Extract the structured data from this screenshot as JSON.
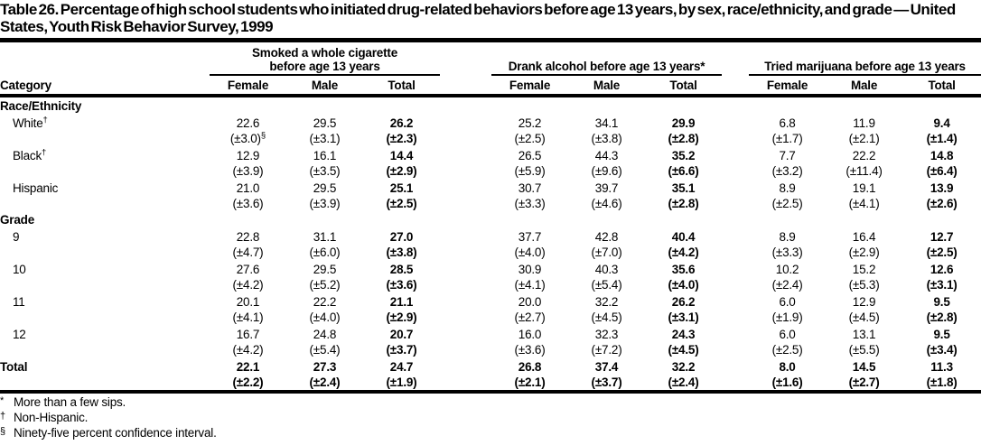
{
  "title": "Table 26. Percentage of high school students who initiated drug-related behaviors before age 13 years, by sex, race/ethnicity, and grade — United States, Youth Risk Behavior Survey, 1999",
  "header": {
    "category": "Category",
    "groups": [
      {
        "name": "cigarette",
        "lines": [
          "Smoked a whole cigarette",
          "before age 13 years"
        ],
        "columns": [
          "Female",
          "Male",
          "Total"
        ]
      },
      {
        "name": "alcohol",
        "lines": [
          "Drank alcohol before age 13 years*"
        ],
        "columns": [
          "Female",
          "Male",
          "Total"
        ]
      },
      {
        "name": "marijuana",
        "lines": [
          "Tried marijuana before age 13 years"
        ],
        "columns": [
          "Female",
          "Male",
          "Total"
        ]
      }
    ]
  },
  "sections": [
    {
      "header": "Race/Ethnicity",
      "rows": [
        {
          "label": "White",
          "label_sup": "†",
          "indent": true,
          "total_row": false,
          "values": [
            "22.6",
            "29.5",
            "26.2",
            "25.2",
            "34.1",
            "29.9",
            "6.8",
            "11.9",
            "9.4"
          ],
          "cis": [
            "(±3.0)",
            "(±3.1)",
            "(±2.3)",
            "(±2.5)",
            "(±3.8)",
            "(±2.8)",
            "(±1.7)",
            "(±2.1)",
            "(±1.4)"
          ],
          "ci_sups": [
            "§",
            "",
            "",
            "",
            "",
            "",
            "",
            "",
            ""
          ]
        },
        {
          "label": "Black",
          "label_sup": "†",
          "indent": true,
          "total_row": false,
          "values": [
            "12.9",
            "16.1",
            "14.4",
            "26.5",
            "44.3",
            "35.2",
            "7.7",
            "22.2",
            "14.8"
          ],
          "cis": [
            "(±3.9)",
            "(±3.5)",
            "(±2.9)",
            "(±5.9)",
            "(±9.6)",
            "(±6.6)",
            "(±3.2)",
            "(±11.4)",
            "(±6.4)"
          ],
          "ci_sups": [
            "",
            "",
            "",
            "",
            "",
            "",
            "",
            "",
            ""
          ]
        },
        {
          "label": "Hispanic",
          "label_sup": "",
          "indent": true,
          "total_row": false,
          "values": [
            "21.0",
            "29.5",
            "25.1",
            "30.7",
            "39.7",
            "35.1",
            "8.9",
            "19.1",
            "13.9"
          ],
          "cis": [
            "(±3.6)",
            "(±3.9)",
            "(±2.5)",
            "(±3.3)",
            "(±4.6)",
            "(±2.8)",
            "(±2.5)",
            "(±4.1)",
            "(±2.6)"
          ],
          "ci_sups": [
            "",
            "",
            "",
            "",
            "",
            "",
            "",
            "",
            ""
          ]
        }
      ]
    },
    {
      "header": "Grade",
      "rows": [
        {
          "label": "9",
          "label_sup": "",
          "indent": true,
          "total_row": false,
          "values": [
            "22.8",
            "31.1",
            "27.0",
            "37.7",
            "42.8",
            "40.4",
            "8.9",
            "16.4",
            "12.7"
          ],
          "cis": [
            "(±4.7)",
            "(±6.0)",
            "(±3.8)",
            "(±4.0)",
            "(±7.0)",
            "(±4.2)",
            "(±3.3)",
            "(±2.9)",
            "(±2.5)"
          ],
          "ci_sups": [
            "",
            "",
            "",
            "",
            "",
            "",
            "",
            "",
            ""
          ]
        },
        {
          "label": "10",
          "label_sup": "",
          "indent": true,
          "total_row": false,
          "values": [
            "27.6",
            "29.5",
            "28.5",
            "30.9",
            "40.3",
            "35.6",
            "10.2",
            "15.2",
            "12.6"
          ],
          "cis": [
            "(±4.2)",
            "(±5.2)",
            "(±3.6)",
            "(±4.1)",
            "(±5.4)",
            "(±4.0)",
            "(±2.4)",
            "(±5.3)",
            "(±3.1)"
          ],
          "ci_sups": [
            "",
            "",
            "",
            "",
            "",
            "",
            "",
            "",
            ""
          ]
        },
        {
          "label": "11",
          "label_sup": "",
          "indent": true,
          "total_row": false,
          "values": [
            "20.1",
            "22.2",
            "21.1",
            "20.0",
            "32.2",
            "26.2",
            "6.0",
            "12.9",
            "9.5"
          ],
          "cis": [
            "(±4.1)",
            "(±4.0)",
            "(±2.9)",
            "(±2.7)",
            "(±4.5)",
            "(±3.1)",
            "(±1.9)",
            "(±4.5)",
            "(±2.8)"
          ],
          "ci_sups": [
            "",
            "",
            "",
            "",
            "",
            "",
            "",
            "",
            ""
          ]
        },
        {
          "label": "12",
          "label_sup": "",
          "indent": true,
          "total_row": false,
          "values": [
            "16.7",
            "24.8",
            "20.7",
            "16.0",
            "32.3",
            "24.3",
            "6.0",
            "13.1",
            "9.5"
          ],
          "cis": [
            "(±4.2)",
            "(±5.4)",
            "(±3.7)",
            "(±3.6)",
            "(±7.2)",
            "(±4.5)",
            "(±2.5)",
            "(±5.5)",
            "(±3.4)"
          ],
          "ci_sups": [
            "",
            "",
            "",
            "",
            "",
            "",
            "",
            "",
            ""
          ]
        }
      ]
    },
    {
      "header": null,
      "rows": [
        {
          "label": "Total",
          "label_sup": "",
          "indent": false,
          "total_row": true,
          "values": [
            "22.1",
            "27.3",
            "24.7",
            "26.8",
            "37.4",
            "32.2",
            "8.0",
            "14.5",
            "11.3"
          ],
          "cis": [
            "(±2.2)",
            "(±2.4)",
            "(±1.9)",
            "(±2.1)",
            "(±3.7)",
            "(±2.4)",
            "(±1.6)",
            "(±2.7)",
            "(±1.8)"
          ],
          "ci_sups": [
            "",
            "",
            "",
            "",
            "",
            "",
            "",
            "",
            ""
          ]
        }
      ]
    }
  ],
  "footnotes": [
    {
      "symbol": "*",
      "text": "More than a few sips."
    },
    {
      "symbol": "†",
      "text": "Non-Hispanic."
    },
    {
      "symbol": "§",
      "text": "Ninety-five percent confidence interval."
    }
  ]
}
